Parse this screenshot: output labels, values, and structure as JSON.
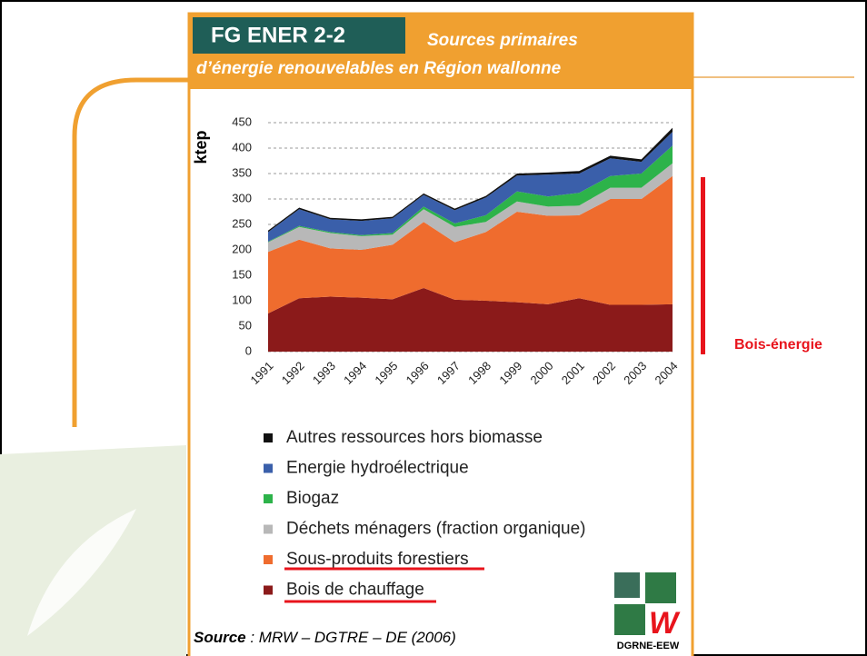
{
  "header": {
    "code": "FG ENER 2-2",
    "title_line1": "Sources primaires",
    "title_line2": "d’énergie renouvelables en Région wallonne"
  },
  "chart_data": {
    "type": "area",
    "stacked": true,
    "ylabel": "ktep",
    "categories": [
      "1991",
      "1992",
      "1993",
      "1994",
      "1995",
      "1996",
      "1997",
      "1998",
      "1999",
      "2000",
      "2001",
      "2002",
      "2003",
      "2004"
    ],
    "series": [
      {
        "name": "Bois de chauffage",
        "color": "#8b1a1a",
        "values": [
          75,
          105,
          108,
          106,
          103,
          125,
          102,
          100,
          97,
          93,
          105,
          92,
          92,
          93
        ]
      },
      {
        "name": "Sous-produits forestiers",
        "color": "#ef6c2e",
        "values": [
          121,
          115,
          95,
          94,
          107,
          130,
          113,
          135,
          178,
          174,
          163,
          208,
          208,
          252
        ]
      },
      {
        "name": "Déchets ménagers (fraction organique)",
        "color": "#b8b8b8",
        "values": [
          19,
          25,
          30,
          27,
          20,
          25,
          30,
          20,
          20,
          18,
          19,
          22,
          22,
          25
        ]
      },
      {
        "name": "Biogaz",
        "color": "#2db34a",
        "values": [
          1,
          2,
          2,
          2,
          3,
          5,
          7,
          13,
          20,
          20,
          25,
          23,
          28,
          35
        ]
      },
      {
        "name": "Energie hydroélectrique",
        "color": "#3a5faa",
        "values": [
          19,
          33,
          25,
          28,
          29,
          23,
          26,
          35,
          31,
          43,
          38,
          35,
          23,
          27
        ]
      },
      {
        "name": "Autres ressources hors biomasse",
        "color": "#111111",
        "values": [
          3,
          3,
          3,
          3,
          3,
          3,
          3,
          3,
          4,
          4,
          5,
          5,
          5,
          8
        ]
      }
    ],
    "ylim": [
      0,
      450
    ],
    "yticks": [
      0,
      50,
      100,
      150,
      200,
      250,
      300,
      350,
      400,
      450
    ],
    "grid": true,
    "annotation": "Bois-énergie"
  },
  "source": {
    "label": "Source",
    "text": " : MRW – DGTRE – DE (2006)"
  },
  "logo": "DGRNE-EEW"
}
